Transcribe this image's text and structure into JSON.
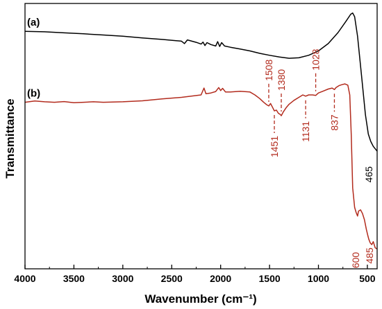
{
  "chart_data": {
    "type": "line",
    "xlabel": "Wavenumber (cm⁻¹)",
    "ylabel": "Transmittance",
    "xlim": [
      4000,
      400
    ],
    "x_reversed": true,
    "y_tick_labels": false,
    "grid": false,
    "legend": "none",
    "x_ticks": [
      {
        "value": 4000,
        "label": "4000"
      },
      {
        "value": 3500,
        "label": "3500"
      },
      {
        "value": 3000,
        "label": "3000"
      },
      {
        "value": 2500,
        "label": "2500"
      },
      {
        "value": 2000,
        "label": "2000"
      },
      {
        "value": 1500,
        "label": "1500"
      },
      {
        "value": 1000,
        "label": "1000"
      },
      {
        "value": 500,
        "label": "500"
      }
    ],
    "series": [
      {
        "name": "(a)",
        "color": "#000000",
        "points": [
          [
            4000,
            0.92
          ],
          [
            3800,
            0.918
          ],
          [
            3600,
            0.914
          ],
          [
            3400,
            0.91
          ],
          [
            3200,
            0.905
          ],
          [
            3000,
            0.9
          ],
          [
            2800,
            0.893
          ],
          [
            2600,
            0.887
          ],
          [
            2400,
            0.88
          ],
          [
            2370,
            0.87
          ],
          [
            2340,
            0.885
          ],
          [
            2250,
            0.875
          ],
          [
            2200,
            0.868
          ],
          [
            2180,
            0.876
          ],
          [
            2160,
            0.862
          ],
          [
            2140,
            0.874
          ],
          [
            2100,
            0.866
          ],
          [
            2050,
            0.86
          ],
          [
            2030,
            0.878
          ],
          [
            2010,
            0.858
          ],
          [
            1990,
            0.874
          ],
          [
            1960,
            0.86
          ],
          [
            1900,
            0.855
          ],
          [
            1800,
            0.848
          ],
          [
            1700,
            0.84
          ],
          [
            1600,
            0.83
          ],
          [
            1500,
            0.822
          ],
          [
            1400,
            0.815
          ],
          [
            1300,
            0.81
          ],
          [
            1200,
            0.812
          ],
          [
            1100,
            0.822
          ],
          [
            1000,
            0.84
          ],
          [
            900,
            0.87
          ],
          [
            800,
            0.915
          ],
          [
            720,
            0.96
          ],
          [
            670,
            0.99
          ],
          [
            650,
            0.995
          ],
          [
            630,
            0.98
          ],
          [
            600,
            0.9
          ],
          [
            560,
            0.74
          ],
          [
            520,
            0.58
          ],
          [
            490,
            0.5
          ],
          [
            465,
            0.47
          ],
          [
            440,
            0.45
          ],
          [
            420,
            0.44
          ],
          [
            400,
            0.43
          ]
        ]
      },
      {
        "name": "(b)",
        "color": "#b22a1c",
        "points": [
          [
            4000,
            0.63
          ],
          [
            3900,
            0.635
          ],
          [
            3800,
            0.632
          ],
          [
            3700,
            0.63
          ],
          [
            3600,
            0.633
          ],
          [
            3500,
            0.628
          ],
          [
            3400,
            0.63
          ],
          [
            3300,
            0.632
          ],
          [
            3200,
            0.63
          ],
          [
            3000,
            0.632
          ],
          [
            2800,
            0.636
          ],
          [
            2600,
            0.644
          ],
          [
            2400,
            0.65
          ],
          [
            2300,
            0.655
          ],
          [
            2200,
            0.66
          ],
          [
            2170,
            0.688
          ],
          [
            2150,
            0.665
          ],
          [
            2100,
            0.668
          ],
          [
            2050,
            0.674
          ],
          [
            2020,
            0.69
          ],
          [
            2000,
            0.678
          ],
          [
            1980,
            0.687
          ],
          [
            1950,
            0.672
          ],
          [
            1900,
            0.672
          ],
          [
            1800,
            0.675
          ],
          [
            1700,
            0.672
          ],
          [
            1650,
            0.66
          ],
          [
            1600,
            0.645
          ],
          [
            1560,
            0.63
          ],
          [
            1530,
            0.62
          ],
          [
            1508,
            0.615
          ],
          [
            1490,
            0.625
          ],
          [
            1470,
            0.61
          ],
          [
            1451,
            0.595
          ],
          [
            1430,
            0.598
          ],
          [
            1410,
            0.585
          ],
          [
            1390,
            0.58
          ],
          [
            1380,
            0.575
          ],
          [
            1360,
            0.59
          ],
          [
            1330,
            0.608
          ],
          [
            1300,
            0.622
          ],
          [
            1250,
            0.638
          ],
          [
            1200,
            0.65
          ],
          [
            1160,
            0.66
          ],
          [
            1131,
            0.655
          ],
          [
            1100,
            0.66
          ],
          [
            1060,
            0.66
          ],
          [
            1028,
            0.658
          ],
          [
            1000,
            0.668
          ],
          [
            950,
            0.676
          ],
          [
            900,
            0.684
          ],
          [
            860,
            0.688
          ],
          [
            837,
            0.682
          ],
          [
            820,
            0.69
          ],
          [
            790,
            0.698
          ],
          [
            760,
            0.702
          ],
          [
            730,
            0.705
          ],
          [
            700,
            0.7
          ],
          [
            680,
            0.66
          ],
          [
            665,
            0.5
          ],
          [
            650,
            0.28
          ],
          [
            630,
            0.2
          ],
          [
            615,
            0.18
          ],
          [
            600,
            0.165
          ],
          [
            590,
            0.185
          ],
          [
            570,
            0.19
          ],
          [
            550,
            0.175
          ],
          [
            530,
            0.15
          ],
          [
            510,
            0.11
          ],
          [
            495,
            0.085
          ],
          [
            485,
            0.07
          ],
          [
            470,
            0.055
          ],
          [
            455,
            0.048
          ],
          [
            440,
            0.06
          ],
          [
            420,
            0.035
          ],
          [
            400,
            0.03
          ]
        ]
      }
    ],
    "annotations": [
      {
        "text": "1508",
        "x": 1508,
        "series": "(b)",
        "side": "above",
        "color": "#b22a1c"
      },
      {
        "text": "1380",
        "x": 1380,
        "series": "(b)",
        "side": "above",
        "color": "#b22a1c"
      },
      {
        "text": "1028",
        "x": 1028,
        "series": "(b)",
        "side": "above",
        "color": "#b22a1c"
      },
      {
        "text": "1451",
        "x": 1451,
        "series": "(b)",
        "side": "below",
        "color": "#b22a1c"
      },
      {
        "text": "1131",
        "x": 1131,
        "series": "(b)",
        "side": "below",
        "color": "#b22a1c"
      },
      {
        "text": "837",
        "x": 837,
        "series": "(b)",
        "side": "below",
        "color": "#b22a1c"
      },
      {
        "text": "600",
        "x": 600,
        "series": "(b)",
        "side": "below",
        "color": "#b22a1c"
      },
      {
        "text": "485",
        "x": 485,
        "series": "(b)",
        "side": "below",
        "color": "#b22a1c"
      },
      {
        "text": "465",
        "x": 465,
        "series": "(a)",
        "side": "below",
        "color": "#000000"
      }
    ]
  }
}
